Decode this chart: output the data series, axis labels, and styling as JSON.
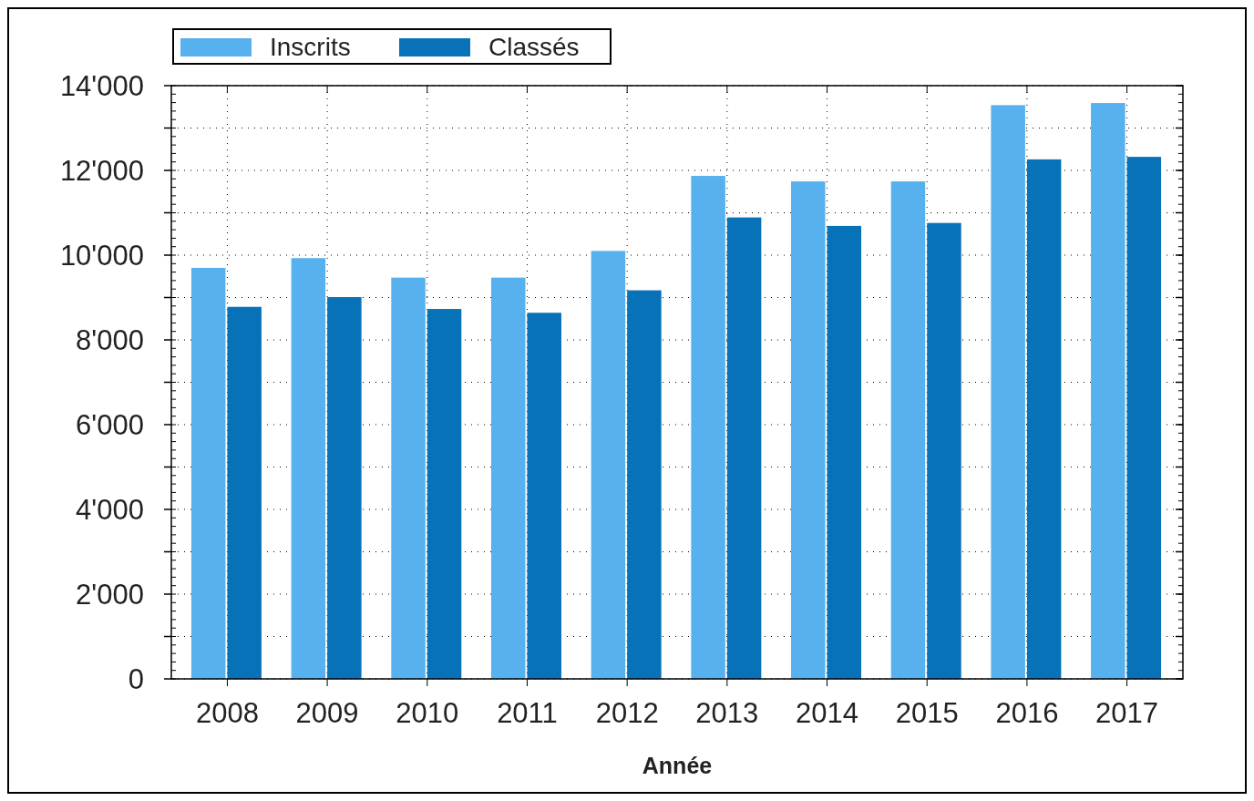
{
  "chart_data": {
    "type": "bar",
    "xlabel": "Année",
    "categories": [
      "2008",
      "2009",
      "2010",
      "2011",
      "2012",
      "2013",
      "2014",
      "2015",
      "2016",
      "2017"
    ],
    "series": [
      {
        "name": "Inscrits",
        "color": "#56b1ee",
        "values": [
          9700,
          9930,
          9470,
          9470,
          10100,
          11870,
          11740,
          11740,
          13540,
          13590
        ]
      },
      {
        "name": "Classés",
        "color": "#0772b8",
        "values": [
          8780,
          9010,
          8730,
          8640,
          9170,
          10890,
          10690,
          10760,
          12260,
          12320
        ]
      }
    ],
    "ylim": [
      0,
      14000
    ],
    "yticks": [
      0,
      {
        "value": 1000,
        "label": null
      },
      {
        "value": 2000,
        "label": "2'000"
      },
      {
        "value": 3000,
        "label": null
      },
      {
        "value": 4000,
        "label": "4'000"
      },
      {
        "value": 5000,
        "label": null
      },
      {
        "value": 6000,
        "label": "6'000"
      },
      {
        "value": 7000,
        "label": null
      },
      {
        "value": 8000,
        "label": "8'000"
      },
      {
        "value": 9000,
        "label": null
      },
      {
        "value": 10000,
        "label": "10'000"
      },
      {
        "value": 11000,
        "label": null
      },
      {
        "value": 12000,
        "label": "12'000"
      },
      {
        "value": 13000,
        "label": null
      },
      {
        "value": 14000,
        "label": "14'000"
      }
    ],
    "grid": true,
    "legend": "top left"
  }
}
